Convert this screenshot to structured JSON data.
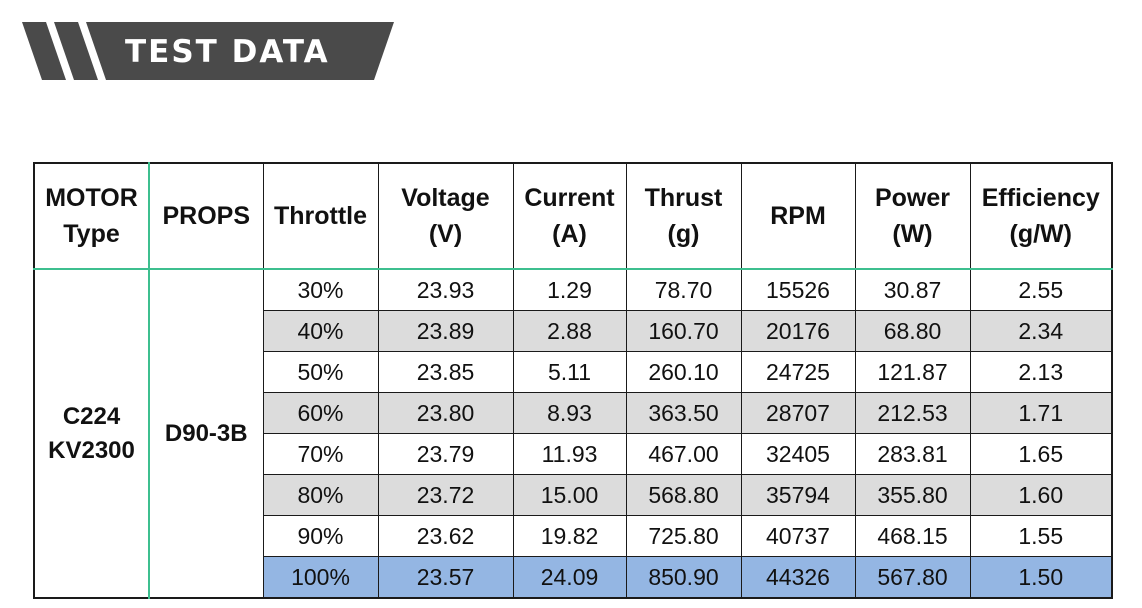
{
  "banner": {
    "title": "TEST DATA",
    "colors": {
      "background": "#4a4a4a",
      "text": "#ffffff"
    }
  },
  "table": {
    "headers": [
      [
        "MOTOR",
        "Type"
      ],
      [
        "PROPS"
      ],
      [
        "Throttle"
      ],
      [
        "Voltage",
        "(V)"
      ],
      [
        "Current",
        "(A)"
      ],
      [
        "Thrust",
        "(g)"
      ],
      [
        "RPM"
      ],
      [
        "Power",
        "(W)"
      ],
      [
        "Efficiency",
        "(g/W)"
      ]
    ],
    "motor": [
      "C224",
      "KV2300"
    ],
    "props": "D90-3B",
    "rows": [
      [
        "30%",
        "23.93",
        "1.29",
        "78.70",
        "15526",
        "30.87",
        "2.55"
      ],
      [
        "40%",
        "23.89",
        "2.88",
        "160.70",
        "20176",
        "68.80",
        "2.34"
      ],
      [
        "50%",
        "23.85",
        "5.11",
        "260.10",
        "24725",
        "121.87",
        "2.13"
      ],
      [
        "60%",
        "23.80",
        "8.93",
        "363.50",
        "28707",
        "212.53",
        "1.71"
      ],
      [
        "70%",
        "23.79",
        "11.93",
        "467.00",
        "32405",
        "283.81",
        "1.65"
      ],
      [
        "80%",
        "23.72",
        "15.00",
        "568.80",
        "35794",
        "355.80",
        "1.60"
      ],
      [
        "90%",
        "23.62",
        "19.82",
        "725.80",
        "40737",
        "468.15",
        "1.55"
      ],
      [
        "100%",
        "23.57",
        "24.09",
        "850.90",
        "44326",
        "567.80",
        "1.50"
      ]
    ],
    "colors": {
      "row_alt": "#dcdcdc",
      "highlight_row": "#94b6e3",
      "divider": "#3dbf8f",
      "border": "#1a1a1a"
    }
  }
}
